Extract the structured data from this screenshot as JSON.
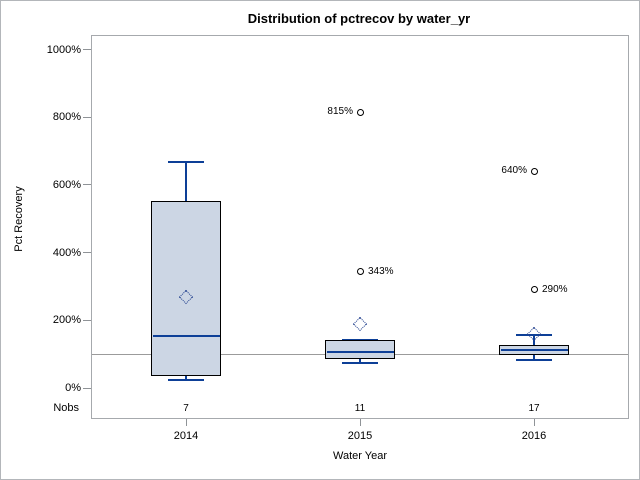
{
  "chart_data": {
    "type": "box",
    "title": "Distribution of pctrecov by water_yr",
    "xlabel": "Water Year",
    "ylabel": "Pct Recovery",
    "nobs_label": "Nobs",
    "categories": [
      "2014",
      "2015",
      "2016"
    ],
    "nobs": [
      7,
      11,
      17
    ],
    "yticks": [
      0,
      200,
      400,
      600,
      800,
      1000
    ],
    "ytick_suffix": "%",
    "ylim": [
      -90,
      1045
    ],
    "grid": false,
    "reference_line": 100,
    "legend": "none",
    "series": [
      {
        "category": "2014",
        "n": 7,
        "whisker_low": 25,
        "q1": 36,
        "median": 155,
        "q3": 552,
        "whisker_high": 667,
        "mean": 267,
        "outliers": []
      },
      {
        "category": "2015",
        "n": 11,
        "whisker_low": 74,
        "q1": 86,
        "median": 107,
        "q3": 141,
        "whisker_high": 141,
        "mean": 188,
        "outliers": [
          {
            "value": 343,
            "label": "343%",
            "label_side": "right"
          },
          {
            "value": 815,
            "label": "815%",
            "label_side": "left"
          }
        ]
      },
      {
        "category": "2016",
        "n": 17,
        "whisker_low": 83,
        "q1": 98,
        "median": 113,
        "q3": 127,
        "whisker_high": 156,
        "mean": 157,
        "outliers": [
          {
            "value": 290,
            "label": "290%",
            "label_side": "right"
          },
          {
            "value": 640,
            "label": "640%",
            "label_side": "left"
          }
        ]
      }
    ],
    "colors": {
      "box_fill": "#ccd6e4",
      "box_border": "#000000",
      "whisker": "#0d3f97",
      "mean_marker": "#23418e",
      "outlier_marker": "#000000",
      "reference_line": "#9b9b9b",
      "axis_border": "#a6a9ad",
      "text": "#000000",
      "background": "#ffffff"
    }
  }
}
